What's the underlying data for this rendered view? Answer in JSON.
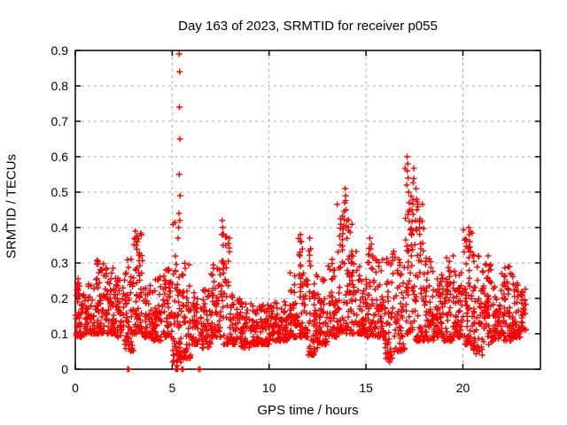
{
  "window": {
    "title": "Day 163 of 2023, SRMTID for receiver p055"
  },
  "chart_data": {
    "type": "scatter",
    "title": "Day 163 of 2023, SRMTID for receiver p055",
    "xlabel": "GPS time / hours",
    "ylabel": "SRMTID / TECUs",
    "xlim": [
      0,
      24
    ],
    "ylim": [
      0,
      0.9
    ],
    "xticks": [
      0,
      5,
      10,
      15,
      20
    ],
    "yticks": [
      0,
      0.1,
      0.2,
      0.3,
      0.4,
      0.5,
      0.6,
      0.7,
      0.8,
      0.9
    ],
    "grid": "dashed",
    "legend": "none",
    "marker": "plus",
    "marker_color": "#ff0000",
    "grid_color": "#a8a8a8",
    "border_color": "#000000",
    "background": "#ffffff",
    "data_end_hour": 23.25,
    "band_bins_format": [
      "x_start",
      "x_end",
      "bulk_min",
      "bulk_max",
      "count"
    ],
    "band_bins": [
      [
        0.0,
        0.5,
        0.09,
        0.26,
        50
      ],
      [
        0.5,
        1.0,
        0.1,
        0.24,
        50
      ],
      [
        1.0,
        1.5,
        0.1,
        0.31,
        55
      ],
      [
        1.5,
        2.0,
        0.1,
        0.29,
        55
      ],
      [
        2.0,
        2.5,
        0.09,
        0.26,
        50
      ],
      [
        2.5,
        3.0,
        0.05,
        0.33,
        55
      ],
      [
        3.0,
        3.5,
        0.1,
        0.39,
        60
      ],
      [
        3.5,
        4.0,
        0.09,
        0.24,
        50
      ],
      [
        4.0,
        4.5,
        0.08,
        0.26,
        50
      ],
      [
        4.5,
        5.0,
        0.09,
        0.29,
        50
      ],
      [
        5.0,
        5.5,
        0.02,
        0.42,
        60
      ],
      [
        5.5,
        6.0,
        0.03,
        0.3,
        50
      ],
      [
        6.0,
        6.5,
        0.07,
        0.22,
        45
      ],
      [
        6.5,
        7.0,
        0.06,
        0.23,
        45
      ],
      [
        7.0,
        7.5,
        0.09,
        0.3,
        50
      ],
      [
        7.5,
        8.0,
        0.07,
        0.4,
        50
      ],
      [
        8.0,
        8.5,
        0.07,
        0.21,
        45
      ],
      [
        8.5,
        9.0,
        0.06,
        0.19,
        45
      ],
      [
        9.0,
        9.5,
        0.07,
        0.19,
        45
      ],
      [
        9.5,
        10.0,
        0.07,
        0.19,
        45
      ],
      [
        10.0,
        10.5,
        0.08,
        0.19,
        45
      ],
      [
        10.5,
        11.0,
        0.08,
        0.21,
        45
      ],
      [
        11.0,
        11.5,
        0.09,
        0.28,
        50
      ],
      [
        11.5,
        12.0,
        0.09,
        0.37,
        55
      ],
      [
        12.0,
        12.5,
        0.04,
        0.35,
        55
      ],
      [
        12.5,
        13.0,
        0.07,
        0.26,
        50
      ],
      [
        13.0,
        13.5,
        0.09,
        0.31,
        50
      ],
      [
        13.5,
        14.0,
        0.1,
        0.48,
        55
      ],
      [
        14.0,
        14.5,
        0.1,
        0.44,
        55
      ],
      [
        14.5,
        15.0,
        0.1,
        0.31,
        50
      ],
      [
        15.0,
        15.5,
        0.09,
        0.36,
        50
      ],
      [
        15.5,
        16.0,
        0.09,
        0.33,
        50
      ],
      [
        16.0,
        16.5,
        0.03,
        0.34,
        50
      ],
      [
        16.5,
        17.0,
        0.05,
        0.33,
        50
      ],
      [
        17.0,
        17.5,
        0.1,
        0.58,
        60
      ],
      [
        17.5,
        18.0,
        0.08,
        0.48,
        55
      ],
      [
        18.0,
        18.5,
        0.08,
        0.32,
        50
      ],
      [
        18.5,
        19.0,
        0.09,
        0.27,
        50
      ],
      [
        19.0,
        19.5,
        0.08,
        0.32,
        50
      ],
      [
        19.5,
        20.0,
        0.09,
        0.28,
        50
      ],
      [
        20.0,
        20.5,
        0.07,
        0.4,
        55
      ],
      [
        20.5,
        21.0,
        0.04,
        0.33,
        50
      ],
      [
        21.0,
        21.5,
        0.07,
        0.3,
        50
      ],
      [
        21.5,
        22.0,
        0.08,
        0.24,
        45
      ],
      [
        22.0,
        22.5,
        0.08,
        0.29,
        50
      ],
      [
        22.5,
        23.0,
        0.09,
        0.27,
        50
      ],
      [
        23.0,
        23.25,
        0.11,
        0.24,
        25
      ]
    ],
    "notable_points": [
      [
        2.7,
        0.0
      ],
      [
        2.76,
        0.0
      ],
      [
        3.06,
        0.37
      ],
      [
        3.1,
        0.39
      ],
      [
        3.14,
        0.35
      ],
      [
        5.18,
        0.0
      ],
      [
        5.22,
        0.0
      ],
      [
        5.25,
        0.0
      ],
      [
        5.28,
        0.0
      ],
      [
        5.24,
        0.01
      ],
      [
        5.3,
        0.37
      ],
      [
        5.33,
        0.4
      ],
      [
        5.35,
        0.44
      ],
      [
        5.36,
        0.89
      ],
      [
        5.36,
        0.55
      ],
      [
        5.37,
        0.74
      ],
      [
        5.38,
        0.84
      ],
      [
        5.39,
        0.42
      ],
      [
        5.4,
        0.65
      ],
      [
        5.41,
        0.49
      ],
      [
        5.5,
        0.0
      ],
      [
        5.56,
        0.0
      ],
      [
        6.36,
        0.0
      ],
      [
        6.44,
        0.0
      ],
      [
        7.56,
        0.38
      ],
      [
        7.58,
        0.42
      ],
      [
        7.61,
        0.4
      ],
      [
        7.63,
        0.35
      ],
      [
        11.59,
        0.33
      ],
      [
        11.62,
        0.38
      ],
      [
        11.66,
        0.36
      ],
      [
        12.1,
        0.37
      ],
      [
        12.14,
        0.34
      ],
      [
        12.3,
        0.04
      ],
      [
        12.36,
        0.05
      ],
      [
        13.9,
        0.47
      ],
      [
        13.92,
        0.51
      ],
      [
        13.95,
        0.49
      ],
      [
        13.97,
        0.45
      ],
      [
        14.02,
        0.42
      ],
      [
        14.08,
        0.4
      ],
      [
        15.2,
        0.37
      ],
      [
        15.24,
        0.34
      ],
      [
        16.22,
        0.02
      ],
      [
        16.3,
        0.04
      ],
      [
        16.46,
        0.05
      ],
      [
        17.1,
        0.52
      ],
      [
        17.12,
        0.6
      ],
      [
        17.13,
        0.56
      ],
      [
        17.15,
        0.58
      ],
      [
        17.17,
        0.54
      ],
      [
        17.2,
        0.5
      ],
      [
        17.23,
        0.47
      ],
      [
        17.26,
        0.45
      ],
      [
        17.56,
        0.42
      ],
      [
        17.58,
        0.51
      ],
      [
        17.61,
        0.48
      ],
      [
        17.63,
        0.45
      ],
      [
        19.5,
        0.32
      ],
      [
        20.28,
        0.34
      ],
      [
        20.3,
        0.4
      ],
      [
        20.33,
        0.38
      ],
      [
        20.36,
        0.36
      ],
      [
        20.8,
        0.05
      ],
      [
        21.3,
        0.32
      ],
      [
        22.4,
        0.29
      ],
      [
        22.45,
        0.27
      ]
    ]
  }
}
